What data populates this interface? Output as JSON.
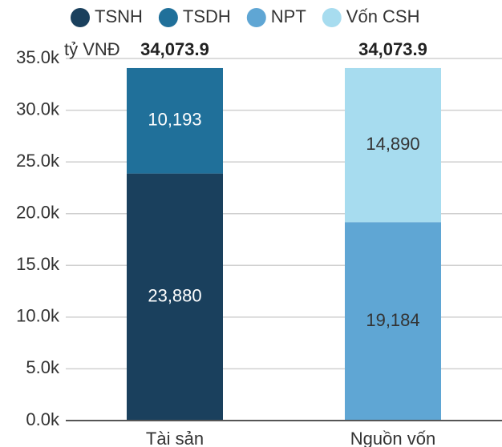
{
  "chart_data": {
    "type": "stacked_bar",
    "y_label": "tỷ VNĐ",
    "categories": [
      "Tài sản",
      "Nguồn vốn"
    ],
    "series": [
      {
        "name": "TSNH",
        "color": "#1a405d",
        "values": [
          23880,
          null
        ],
        "value_labels": [
          "23,880",
          null
        ]
      },
      {
        "name": "TSDH",
        "color": "#20709a",
        "values": [
          10193,
          null
        ],
        "value_labels": [
          "10,193",
          null
        ]
      },
      {
        "name": "NPT",
        "color": "#5fa6d4",
        "values": [
          null,
          19184
        ],
        "value_labels": [
          null,
          "19,184"
        ]
      },
      {
        "name": "Vốn CSH",
        "color": "#a7dcef",
        "values": [
          null,
          14890
        ],
        "value_labels": [
          null,
          "14,890"
        ]
      }
    ],
    "totals": [
      34073.9,
      34073.9
    ],
    "total_labels": [
      "34,073.9",
      "34,073.9"
    ],
    "ylim": [
      0,
      35000
    ],
    "yticks": [
      {
        "value": 0,
        "label": "0.0k"
      },
      {
        "value": 5000,
        "label": "5.0k"
      },
      {
        "value": 10000,
        "label": "10.0k"
      },
      {
        "value": 15000,
        "label": "15.0k"
      },
      {
        "value": 20000,
        "label": "20.0k"
      },
      {
        "value": 25000,
        "label": "25.0k"
      },
      {
        "value": 30000,
        "label": "30.0k"
      },
      {
        "value": 35000,
        "label": "35.0k"
      }
    ],
    "grid": true,
    "legend": "top"
  }
}
